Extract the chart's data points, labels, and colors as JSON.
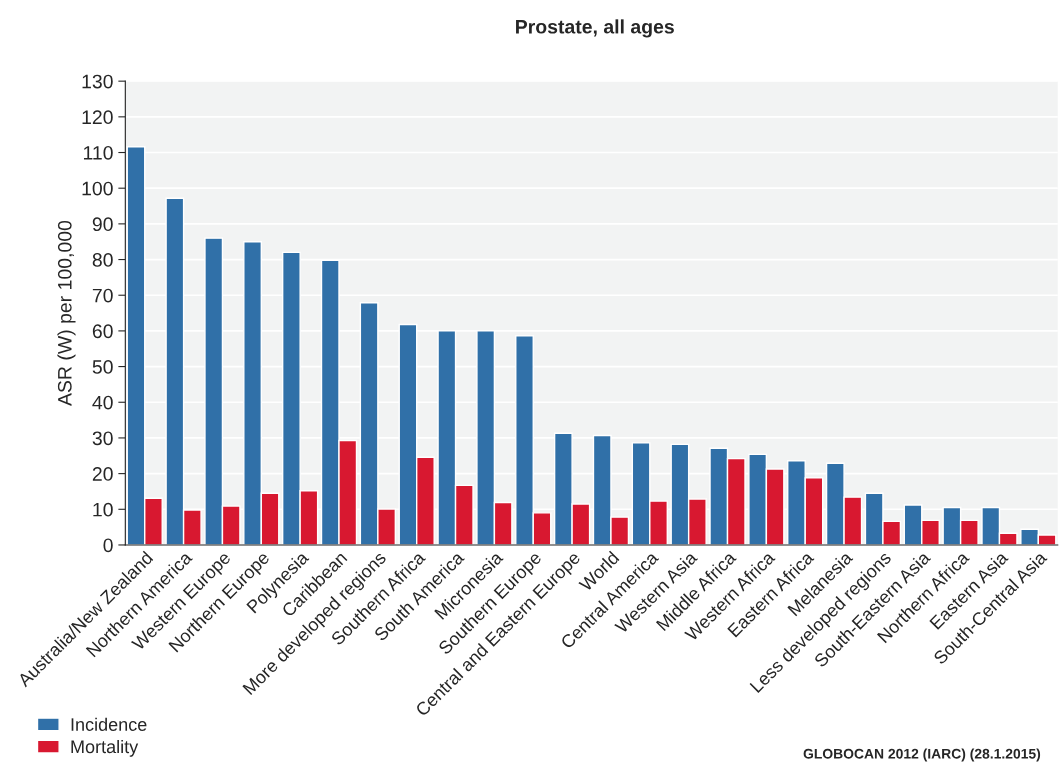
{
  "chart_data": {
    "type": "bar",
    "title": "Prostate, all ages",
    "ylabel": "ASR (W) per 100,000",
    "categories": [
      "Australia/New Zealand",
      "Northern America",
      "Western Europe",
      "Northern Europe",
      "Polynesia",
      "Caribbean",
      "More developed regions",
      "Southern Africa",
      "South America",
      "Micronesia",
      "Southern Europe",
      "Central and Eastern Europe",
      "World",
      "Central America",
      "Western Asia",
      "Middle Africa",
      "Western Africa",
      "Eastern Africa",
      "Melanesia",
      "Less developed regions",
      "South-Eastern Asia",
      "Northern Africa",
      "Eastern Asia",
      "South-Central Asia"
    ],
    "series": [
      {
        "name": "Incidence",
        "color": "#3070a8",
        "values": [
          111.6,
          97.2,
          86.0,
          85.0,
          82.0,
          79.8,
          67.9,
          61.8,
          60.0,
          60.0,
          58.6,
          31.3,
          30.7,
          28.6,
          28.2,
          27.1,
          25.4,
          23.6,
          22.9,
          14.5,
          11.2,
          10.5,
          10.5,
          4.4
        ]
      },
      {
        "name": "Mortality",
        "color": "#d81830",
        "values": [
          13.1,
          9.8,
          10.9,
          14.5,
          15.2,
          29.3,
          10.1,
          24.6,
          16.7,
          11.9,
          9.0,
          11.5,
          7.8,
          12.3,
          12.9,
          24.2,
          21.3,
          18.8,
          13.4,
          6.6,
          6.9,
          6.9,
          3.3,
          2.8
        ]
      }
    ],
    "ylim": [
      0,
      130
    ],
    "yticks": [
      0,
      10,
      20,
      30,
      40,
      50,
      60,
      70,
      80,
      90,
      100,
      110,
      120,
      130
    ],
    "grid": "y",
    "legend": "bottom left",
    "annotations": [
      "GLOBOCAN 2012 (IARC) (28.1.2015)"
    ]
  }
}
